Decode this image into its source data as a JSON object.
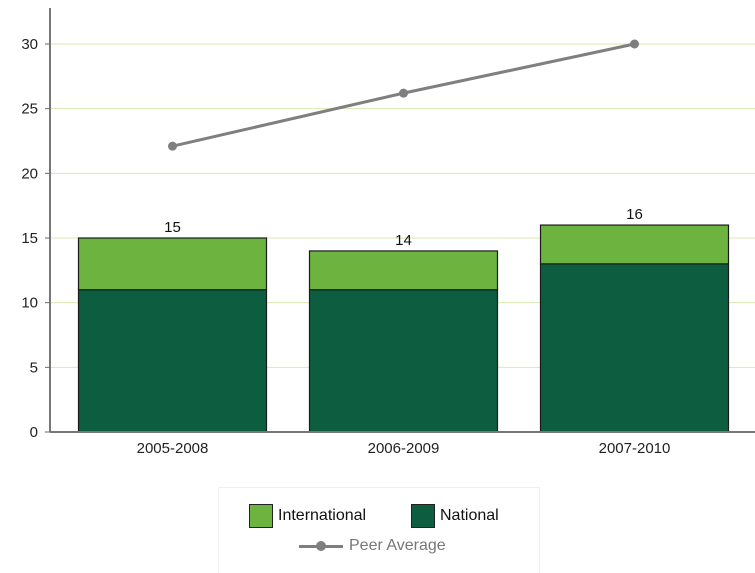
{
  "chart_data": {
    "type": "bar",
    "stacked": true,
    "categories": [
      "2005-2008",
      "2006-2009",
      "2007-2010"
    ],
    "series": [
      {
        "name": "National",
        "values": [
          11,
          11,
          13
        ],
        "color": "#0d5e40"
      },
      {
        "name": "International",
        "values": [
          4,
          3,
          3
        ],
        "color": "#6cb33f"
      }
    ],
    "totals": [
      "15",
      "14",
      "16"
    ],
    "line_series": {
      "name": "Peer Average",
      "values": [
        22.1,
        26.2,
        30.0
      ],
      "color": "#7f7f7f"
    },
    "ylim": [
      0,
      30
    ],
    "y_ticks": [
      "0",
      "5",
      "10",
      "15",
      "20",
      "25",
      "30"
    ],
    "grid": true,
    "grid_color": "#d9e8b0",
    "legend_position": "bottom"
  },
  "legend": {
    "international": "International",
    "national": "National",
    "peer_average": "Peer Average"
  }
}
